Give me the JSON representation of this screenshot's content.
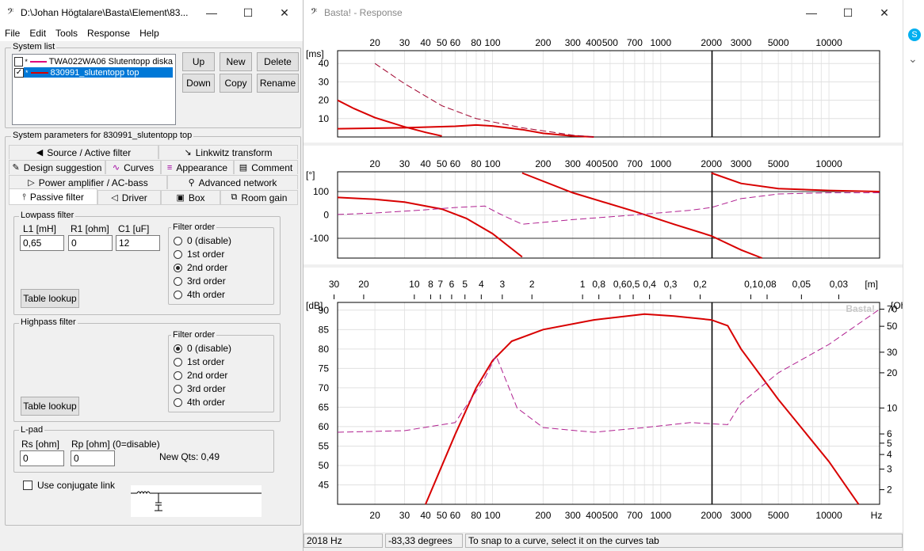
{
  "left_window": {
    "title": "D:\\Johan Högtalare\\Basta\\Element\\83...",
    "controls": {
      "minimize": "—",
      "maximize": "☐",
      "close": "✕"
    }
  },
  "menu": [
    "File",
    "Edit",
    "Tools",
    "Response",
    "Help"
  ],
  "system_list": {
    "label": "System list",
    "items": [
      {
        "name": "TWA022WA06 Slutentopp diska",
        "checked": false,
        "selected": false,
        "color": "#e0007a"
      },
      {
        "name": "830991_slutentopp top",
        "checked": true,
        "selected": true,
        "color": "#d80000"
      }
    ],
    "buttons": {
      "up": "Up",
      "new": "New",
      "delete": "Delete",
      "down": "Down",
      "copy": "Copy",
      "rename": "Rename"
    }
  },
  "params_label": "System parameters for 830991_slutentopp top",
  "tabs": {
    "row1": [
      "Source / Active filter",
      "Linkwitz transform"
    ],
    "row2": [
      "Design suggestion",
      "Curves",
      "Appearance",
      "Comment"
    ],
    "row3": [
      "Power amplifier / AC-bass",
      "Advanced network"
    ],
    "row4": [
      "Passive filter",
      "Driver",
      "Box",
      "Room gain"
    ]
  },
  "lowpass": {
    "label": "Lowpass filter",
    "l1_label": "L1 [mH]",
    "r1_label": "R1 [ohm]",
    "c1_label": "C1 [uF]",
    "l1": "0,65",
    "r1": "0",
    "c1": "12",
    "order_label": "Filter order",
    "orders": [
      "0 (disable)",
      "1st order",
      "2nd order",
      "3rd order",
      "4th order"
    ],
    "selected_order": 2,
    "table_lookup": "Table lookup"
  },
  "highpass": {
    "label": "Highpass filter",
    "order_label": "Filter order",
    "orders": [
      "0 (disable)",
      "1st order",
      "2nd order",
      "3rd order",
      "4th order"
    ],
    "selected_order": 0,
    "table_lookup": "Table lookup"
  },
  "lpad": {
    "label": "L-pad",
    "rs_label": "Rs [ohm]",
    "rp_label": "Rp [ohm] (0=disable)",
    "rs": "0",
    "rp": "0",
    "new_qts": "New Qts: 0,49"
  },
  "conjugate_label": "Use conjugate link",
  "right_window": {
    "title": "Basta! - Response",
    "controls": {
      "minimize": "—",
      "maximize": "☐",
      "close": "✕"
    }
  },
  "charts": {
    "freq_ticks": [
      "20",
      "30",
      "40",
      "50",
      "60",
      "80",
      "100",
      "200",
      "300",
      "400",
      "500",
      "700",
      "1000",
      "2000",
      "3000",
      "5000",
      "10000"
    ],
    "dist_ticks": [
      "30",
      "20",
      "10",
      "8",
      "7",
      "6",
      "5",
      "4",
      "3",
      "2",
      "1",
      "0,8",
      "0,6",
      "0,5",
      "0,4",
      "0,3",
      "0,2",
      "0,1",
      "0,08",
      "0,05",
      "0,03"
    ],
    "hz_label": "Hz",
    "m_label": "[m]",
    "watermark": "Basta!",
    "cursor_freq": 2018
  },
  "chart_data": [
    {
      "type": "line",
      "ylabel": "[ms]",
      "xscale": "log",
      "xlim": [
        12,
        20000
      ],
      "ylim": [
        0,
        47
      ],
      "yticks": [
        10,
        20,
        30,
        40
      ],
      "series": [
        {
          "color": "#d80000",
          "dashed": false,
          "width": 2,
          "x": [
            12,
            15,
            20,
            30,
            40,
            50
          ],
          "y": [
            20,
            15.5,
            10.5,
            5.5,
            2.5,
            0.5
          ]
        },
        {
          "color": "#d80000",
          "dashed": false,
          "width": 2,
          "x": [
            12,
            30,
            60,
            80,
            100,
            150,
            200,
            300,
            400
          ],
          "y": [
            4.5,
            5,
            5.8,
            6.5,
            6,
            4,
            2,
            0.5,
            0
          ]
        },
        {
          "color": "#a0002c",
          "dashed": true,
          "width": 1,
          "x": [
            20,
            30,
            50,
            80,
            150,
            300,
            400
          ],
          "y": [
            40,
            29,
            17,
            10,
            5,
            1,
            0
          ]
        }
      ]
    },
    {
      "type": "line",
      "ylabel": "[°]",
      "xscale": "log",
      "xlim": [
        12,
        20000
      ],
      "ylim": [
        -185,
        185
      ],
      "yticks": [
        -100,
        0,
        100
      ],
      "series": [
        {
          "color": "#d80000",
          "dashed": false,
          "width": 2,
          "x": [
            12,
            20,
            30,
            50,
            70,
            100,
            150
          ],
          "y": [
            75,
            67,
            55,
            25,
            -15,
            -80,
            -180
          ]
        },
        {
          "color": "#d80000",
          "dashed": false,
          "width": 2,
          "x": [
            150,
            300,
            700,
            1200,
            2000,
            3000,
            4000
          ],
          "y": [
            180,
            95,
            15,
            -40,
            -90,
            -150,
            -185
          ]
        },
        {
          "color": "#d80000",
          "dashed": false,
          "width": 2,
          "x": [
            2000,
            3000,
            5000,
            10000,
            20000
          ],
          "y": [
            180,
            135,
            113,
            105,
            100
          ]
        },
        {
          "color": "#b02090",
          "dashed": true,
          "width": 1,
          "x": [
            12,
            20,
            40,
            60,
            90,
            110,
            150,
            300,
            700,
            1500,
            2000,
            3000,
            5000,
            10000,
            20000
          ],
          "y": [
            2,
            8,
            22,
            32,
            38,
            5,
            -40,
            -20,
            0,
            20,
            32,
            70,
            90,
            95,
            95
          ]
        }
      ]
    },
    {
      "type": "line",
      "ylabel": "[dB]",
      "y2label": "[Ohm]",
      "xscale": "log",
      "xlim": [
        12,
        20000
      ],
      "ylim": [
        40,
        92
      ],
      "yticks": [
        45,
        50,
        55,
        60,
        65,
        70,
        75,
        80,
        85,
        90
      ],
      "y2ticks": [
        2,
        3,
        4,
        5,
        6,
        10,
        20,
        30,
        50,
        70
      ],
      "series": [
        {
          "color": "#d80000",
          "dashed": false,
          "width": 2,
          "axis": "left",
          "x": [
            40,
            60,
            80,
            100,
            130,
            200,
            400,
            800,
            1200,
            2000,
            2500,
            3000,
            5000,
            10000,
            15000
          ],
          "y": [
            40,
            58,
            70,
            77,
            82,
            85,
            87.5,
            89,
            88.5,
            87.5,
            86,
            80,
            67,
            51,
            40
          ]
        },
        {
          "color": "#b02090",
          "dashed": true,
          "width": 1,
          "axis": "right",
          "x": [
            12,
            30,
            60,
            90,
            105,
            140,
            200,
            400,
            800,
            1500,
            2500,
            3000,
            5000,
            10000,
            20000
          ],
          "y": [
            6.2,
            6.4,
            7.5,
            18,
            28,
            10,
            6.8,
            6.2,
            6.8,
            7.5,
            7.2,
            11,
            20,
            35,
            70
          ]
        }
      ]
    }
  ],
  "statusbar": {
    "freq": "2018 Hz",
    "degrees": "-83,33 degrees",
    "hint": "To snap to a curve, select it on the curves tab"
  }
}
